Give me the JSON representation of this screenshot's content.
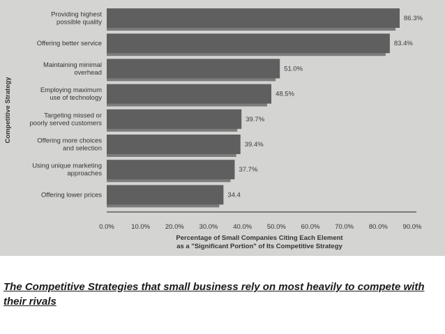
{
  "chart_data": {
    "type": "bar",
    "orientation": "horizontal",
    "categories": [
      [
        "Providing highest",
        "possible quality"
      ],
      [
        "Offering better service"
      ],
      [
        "Maintaining minimal",
        "overhead"
      ],
      [
        "Employing maximum",
        "use of technology"
      ],
      [
        "Targeting missed or",
        "poorly served customers"
      ],
      [
        "Offering more choices",
        "and selection"
      ],
      [
        "Using unique marketing",
        "approaches"
      ],
      [
        "Offering lower prices"
      ]
    ],
    "values": [
      86.3,
      83.4,
      51.0,
      48.5,
      39.7,
      39.4,
      37.7,
      34.4
    ],
    "value_labels": [
      "86.3%",
      "83.4%",
      "51.0%",
      "48.5%",
      "39.7%",
      "39.4%",
      "37.7%",
      "34.4"
    ],
    "xlim": [
      0,
      90
    ],
    "x_ticks": [
      "0.0%",
      "10.0%",
      "20.0%",
      "30.0%",
      "40.0%",
      "50.0%",
      "60.0%",
      "70.0%",
      "80.0%",
      "90.0%"
    ],
    "xlabel": [
      "Percentage of Small Companies Citing Each Element",
      "as a \"Significant Portion\" of Its Competitive Strategy"
    ],
    "ylabel": "Competitive Strategy",
    "bar_color": "#5f5f5f",
    "background_color": "#d4d4d2",
    "grid": false
  },
  "caption": "The Competitive Strategies that small business rely on most heavily to compete with their rivals"
}
